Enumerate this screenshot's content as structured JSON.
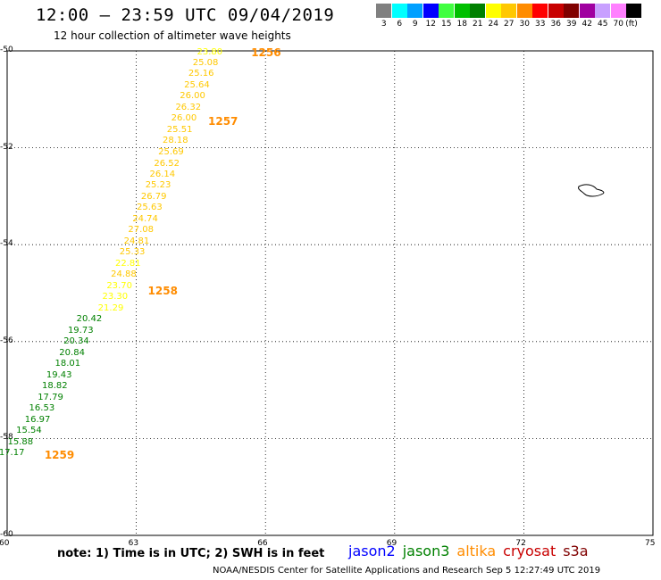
{
  "header": {
    "title": "12:00 – 23:59 UTC 09/04/2019",
    "subtitle": "12 hour collection of altimeter wave heights"
  },
  "color_scale": {
    "unit": "(ft)",
    "bins": [
      {
        "color": "#808080",
        "label": "3"
      },
      {
        "color": "#00ffff",
        "label": "6"
      },
      {
        "color": "#00a0ff",
        "label": "9"
      },
      {
        "color": "#0000ff",
        "label": "12"
      },
      {
        "color": "#40ff40",
        "label": "15"
      },
      {
        "color": "#00c000",
        "label": "18"
      },
      {
        "color": "#008000",
        "label": "21"
      },
      {
        "color": "#ffff00",
        "label": "24"
      },
      {
        "color": "#ffc800",
        "label": "27"
      },
      {
        "color": "#ff8c00",
        "label": "30"
      },
      {
        "color": "#ff0000",
        "label": "33"
      },
      {
        "color": "#c80000",
        "label": "36"
      },
      {
        "color": "#800000",
        "label": "39"
      },
      {
        "color": "#a000a0",
        "label": "42"
      },
      {
        "color": "#c8a0ff",
        "label": "45"
      },
      {
        "color": "#ff80ff",
        "label": "70"
      },
      {
        "color": "#000000",
        "label": ""
      }
    ]
  },
  "map": {
    "lon_range": [
      60,
      75
    ],
    "lat_range": [
      -60,
      -50
    ],
    "lon_ticks": [
      "60",
      "63",
      "66",
      "69",
      "72",
      "75"
    ],
    "lat_ticks": [
      "-50",
      "-52",
      "-54",
      "-56",
      "-58",
      "-60"
    ],
    "passes": [
      {
        "label": "1256",
        "lon": 66.0,
        "lat": -50.03
      },
      {
        "label": "1257",
        "lon": 65.0,
        "lat": -51.45
      },
      {
        "label": "1258",
        "lon": 63.6,
        "lat": -54.95
      },
      {
        "label": "1259",
        "lon": 61.2,
        "lat": -58.35
      }
    ],
    "measurements": [
      {
        "v": "23.80",
        "lon": 64.7,
        "lat": -50.03,
        "c": "#ffff00"
      },
      {
        "v": "25.08",
        "lon": 64.6,
        "lat": -50.25,
        "c": "#ffc800"
      },
      {
        "v": "25.16",
        "lon": 64.5,
        "lat": -50.48,
        "c": "#ffc800"
      },
      {
        "v": "25.64",
        "lon": 64.4,
        "lat": -50.71,
        "c": "#ffc800"
      },
      {
        "v": "26.00",
        "lon": 64.3,
        "lat": -50.94,
        "c": "#ffc800"
      },
      {
        "v": "26.32",
        "lon": 64.2,
        "lat": -51.17,
        "c": "#ffc800"
      },
      {
        "v": "26.00",
        "lon": 64.1,
        "lat": -51.4,
        "c": "#ffc800"
      },
      {
        "v": "25.51",
        "lon": 64.0,
        "lat": -51.63,
        "c": "#ffc800"
      },
      {
        "v": "28.18",
        "lon": 63.9,
        "lat": -51.86,
        "c": "#ffc800"
      },
      {
        "v": "25.69",
        "lon": 63.8,
        "lat": -52.1,
        "c": "#ffc800"
      },
      {
        "v": "26.52",
        "lon": 63.7,
        "lat": -52.33,
        "c": "#ffc800"
      },
      {
        "v": "26.14",
        "lon": 63.6,
        "lat": -52.56,
        "c": "#ffc800"
      },
      {
        "v": "25.23",
        "lon": 63.5,
        "lat": -52.79,
        "c": "#ffc800"
      },
      {
        "v": "26.79",
        "lon": 63.4,
        "lat": -53.02,
        "c": "#ffc800"
      },
      {
        "v": "25.63",
        "lon": 63.3,
        "lat": -53.25,
        "c": "#ffc800"
      },
      {
        "v": "24.74",
        "lon": 63.2,
        "lat": -53.48,
        "c": "#ffc800"
      },
      {
        "v": "27.08",
        "lon": 63.1,
        "lat": -53.71,
        "c": "#ffc800"
      },
      {
        "v": "24.81",
        "lon": 63.0,
        "lat": -53.94,
        "c": "#ffc800"
      },
      {
        "v": "25.33",
        "lon": 62.9,
        "lat": -54.17,
        "c": "#ffc800"
      },
      {
        "v": "22.81",
        "lon": 62.8,
        "lat": -54.4,
        "c": "#ffff00"
      },
      {
        "v": "24.88",
        "lon": 62.7,
        "lat": -54.63,
        "c": "#ffc800"
      },
      {
        "v": "23.70",
        "lon": 62.6,
        "lat": -54.86,
        "c": "#ffff00"
      },
      {
        "v": "23.30",
        "lon": 62.5,
        "lat": -55.09,
        "c": "#ffff00"
      },
      {
        "v": "21.29",
        "lon": 62.4,
        "lat": -55.32,
        "c": "#ffff00"
      },
      {
        "v": "20.42",
        "lon": 61.9,
        "lat": -55.55,
        "c": "#008000"
      },
      {
        "v": "19.73",
        "lon": 61.7,
        "lat": -55.78,
        "c": "#008000"
      },
      {
        "v": "20.34",
        "lon": 61.6,
        "lat": -56.01,
        "c": "#008000"
      },
      {
        "v": "20.84",
        "lon": 61.5,
        "lat": -56.24,
        "c": "#008000"
      },
      {
        "v": "18.01",
        "lon": 61.4,
        "lat": -56.47,
        "c": "#008000"
      },
      {
        "v": "19.43",
        "lon": 61.2,
        "lat": -56.7,
        "c": "#008000"
      },
      {
        "v": "18.82",
        "lon": 61.1,
        "lat": -56.93,
        "c": "#008000"
      },
      {
        "v": "17.79",
        "lon": 61.0,
        "lat": -57.16,
        "c": "#008000"
      },
      {
        "v": "16.53",
        "lon": 60.8,
        "lat": -57.39,
        "c": "#008000"
      },
      {
        "v": "16.97",
        "lon": 60.7,
        "lat": -57.62,
        "c": "#008000"
      },
      {
        "v": "15.54",
        "lon": 60.5,
        "lat": -57.85,
        "c": "#008000"
      },
      {
        "v": "15.88",
        "lon": 60.3,
        "lat": -58.08,
        "c": "#008000"
      },
      {
        "v": "17.17",
        "lon": 60.1,
        "lat": -58.31,
        "c": "#008000"
      }
    ]
  },
  "footer": {
    "note": "note: 1) Time is in UTC; 2) SWH is in feet",
    "satellites": [
      {
        "name": "jason2",
        "color": "#0000ff"
      },
      {
        "name": "jason3",
        "color": "#008000"
      },
      {
        "name": "altika",
        "color": "#ff8c00"
      },
      {
        "name": "cryosat",
        "color": "#c80000"
      },
      {
        "name": "s3a",
        "color": "#800000"
      }
    ],
    "credit": "NOAA/NESDIS Center for Satellite Applications and Research    Sep  5 12:27:49 UTC 2019"
  }
}
